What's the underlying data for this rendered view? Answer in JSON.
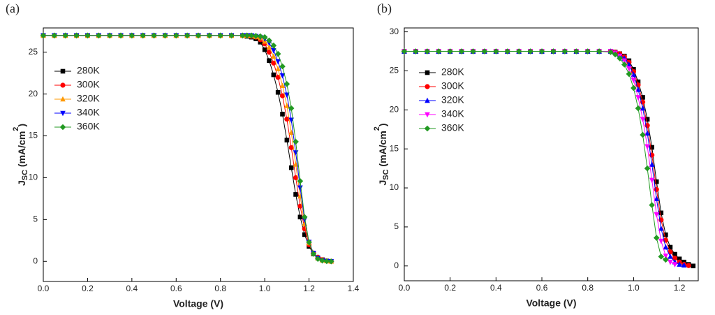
{
  "chart_data": [
    {
      "type": "line",
      "panel_label": "(a)",
      "xlabel": "Voltage (V)",
      "ylabel": [
        "J",
        "SC",
        " (mA/cm",
        "2",
        ")"
      ],
      "xlim": [
        0,
        1.4
      ],
      "ylim": [
        -2.4,
        27.9
      ],
      "xticks": [
        {
          "value": 0,
          "label": "0.0"
        },
        0.2,
        0.4,
        0.6,
        0.8,
        {
          "value": 1,
          "label": "1.0"
        },
        1.2,
        1.4
      ],
      "yticks": [
        0,
        5,
        10,
        15,
        20,
        25
      ],
      "x": [
        0,
        0.05,
        0.1,
        0.15,
        0.2,
        0.25,
        0.3,
        0.35,
        0.4,
        0.45,
        0.5,
        0.55,
        0.6,
        0.65,
        0.7,
        0.75,
        0.8,
        0.85,
        0.9,
        0.92,
        0.94,
        0.96,
        0.98,
        1.0,
        1.02,
        1.04,
        1.06,
        1.08,
        1.1,
        1.12,
        1.14,
        1.16,
        1.18,
        1.2,
        1.22,
        1.24,
        1.26,
        1.28,
        1.3
      ],
      "series": [
        {
          "name": "280K",
          "color": "#000000",
          "marker": "square",
          "values": [
            27,
            27,
            27,
            27,
            27,
            27,
            27,
            27,
            27,
            27,
            27,
            27,
            27,
            27,
            27,
            27,
            27,
            27,
            27,
            26.9,
            26.8,
            26.6,
            26.2,
            25.3,
            24.0,
            22.3,
            20.2,
            17.6,
            14.5,
            11.2,
            8.0,
            5.3,
            3.2,
            1.8,
            0.9,
            0.4,
            0.2,
            0.05,
            0
          ]
        },
        {
          "name": "300K",
          "color": "#ff0000",
          "marker": "circle",
          "values": [
            27,
            27,
            27,
            27,
            27,
            27,
            27,
            27,
            27,
            27,
            27,
            27,
            27,
            27,
            27,
            27,
            27,
            27,
            27,
            27,
            26.9,
            26.8,
            26.5,
            26.0,
            25.0,
            23.7,
            22.0,
            19.8,
            17.0,
            13.6,
            10.0,
            6.6,
            3.9,
            2.0,
            1.0,
            0.5,
            0.2,
            0.05,
            0
          ]
        },
        {
          "name": "320K",
          "color": "#ff9900",
          "marker": "triangle-up",
          "values": [
            27,
            27,
            27,
            27,
            27,
            27,
            27,
            27,
            27,
            27,
            27,
            27,
            27,
            27,
            27,
            27,
            27,
            27,
            27,
            27,
            26.95,
            26.85,
            26.7,
            26.3,
            25.6,
            24.5,
            23.0,
            21.0,
            18.6,
            15.4,
            11.6,
            7.8,
            4.5,
            2.2,
            1.0,
            0.4,
            0.15,
            0.05,
            0
          ]
        },
        {
          "name": "340K",
          "color": "#0000ff",
          "marker": "triangle-down",
          "values": [
            27,
            27,
            27,
            27,
            27,
            27,
            27,
            27,
            27,
            27,
            27,
            27,
            27,
            27,
            27,
            27,
            27,
            27,
            27,
            27,
            27,
            26.9,
            26.8,
            26.6,
            26.1,
            25.2,
            23.9,
            22.2,
            19.9,
            16.9,
            13.0,
            8.8,
            5.0,
            2.3,
            1.0,
            0.4,
            0.1,
            0.02,
            0
          ]
        },
        {
          "name": "360K",
          "color": "#229922",
          "marker": "diamond",
          "values": [
            27,
            27,
            27,
            27,
            27,
            27,
            27,
            27,
            27,
            27,
            27,
            27,
            27,
            27,
            27,
            27,
            27,
            27,
            27,
            27,
            27,
            26.95,
            26.9,
            26.8,
            26.4,
            25.8,
            24.8,
            23.3,
            21.2,
            18.3,
            14.3,
            9.6,
            5.3,
            2.3,
            0.9,
            0.3,
            0.1,
            0.02,
            0
          ]
        }
      ]
    },
    {
      "type": "line",
      "panel_label": "(b)",
      "xlabel": "Voltage (V)",
      "ylabel": [
        "J",
        "SC",
        " (mA/cm",
        "2",
        ")"
      ],
      "xlim": [
        0,
        1.282
      ],
      "ylim": [
        -1.9,
        30.5
      ],
      "xticks": [
        {
          "value": 0,
          "label": "0.0"
        },
        0.2,
        0.4,
        0.6,
        0.8,
        {
          "value": 1,
          "label": "1.0"
        },
        1.2
      ],
      "yticks": [
        0,
        5,
        10,
        15,
        20,
        25,
        30
      ],
      "x": [
        0,
        0.05,
        0.1,
        0.15,
        0.2,
        0.25,
        0.3,
        0.35,
        0.4,
        0.45,
        0.5,
        0.55,
        0.6,
        0.65,
        0.7,
        0.75,
        0.8,
        0.85,
        0.9,
        0.92,
        0.94,
        0.96,
        0.98,
        1.0,
        1.02,
        1.04,
        1.06,
        1.08,
        1.1,
        1.12,
        1.14,
        1.16,
        1.18,
        1.2,
        1.22,
        1.24,
        1.26
      ],
      "series": [
        {
          "name": "280K",
          "color": "#000000",
          "marker": "square",
          "values": [
            27.5,
            27.5,
            27.5,
            27.5,
            27.5,
            27.5,
            27.5,
            27.5,
            27.5,
            27.5,
            27.5,
            27.5,
            27.5,
            27.5,
            27.5,
            27.5,
            27.5,
            27.5,
            27.5,
            27.4,
            27.2,
            26.9,
            26.3,
            25.2,
            23.6,
            21.6,
            18.8,
            15.2,
            10.8,
            6.8,
            4.0,
            2.4,
            1.5,
            0.9,
            0.5,
            0.2,
            0
          ]
        },
        {
          "name": "300K",
          "color": "#ff0000",
          "marker": "circle",
          "values": [
            27.5,
            27.5,
            27.5,
            27.5,
            27.5,
            27.5,
            27.5,
            27.5,
            27.5,
            27.5,
            27.5,
            27.5,
            27.5,
            27.5,
            27.5,
            27.5,
            27.5,
            27.5,
            27.5,
            27.4,
            27.2,
            26.8,
            26.1,
            24.9,
            23.2,
            21.0,
            18.0,
            14.2,
            9.8,
            5.9,
            3.3,
            1.8,
            1.0,
            0.5,
            0.2,
            0.05,
            null
          ]
        },
        {
          "name": "320K",
          "color": "#0000ff",
          "marker": "triangle-up",
          "values": [
            27.5,
            27.5,
            27.5,
            27.5,
            27.5,
            27.5,
            27.5,
            27.5,
            27.5,
            27.5,
            27.5,
            27.5,
            27.5,
            27.5,
            27.5,
            27.5,
            27.5,
            27.5,
            27.5,
            27.3,
            27.0,
            26.6,
            25.8,
            24.5,
            22.6,
            20.2,
            17.0,
            13.0,
            8.6,
            4.8,
            2.4,
            1.2,
            0.5,
            0.2,
            0.1,
            null,
            null
          ]
        },
        {
          "name": "340K",
          "color": "#ff00ff",
          "marker": "triangle-down",
          "values": [
            27.5,
            27.5,
            27.5,
            27.5,
            27.5,
            27.5,
            27.5,
            27.5,
            27.5,
            27.5,
            27.5,
            27.5,
            27.5,
            27.5,
            27.5,
            27.5,
            27.5,
            27.5,
            27.5,
            27.3,
            26.9,
            26.3,
            25.3,
            23.8,
            21.6,
            18.8,
            15.3,
            11.0,
            6.6,
            3.2,
            1.3,
            0.5,
            0.2,
            null,
            null,
            null,
            null
          ]
        },
        {
          "name": "360K",
          "color": "#229922",
          "marker": "diamond",
          "values": [
            27.5,
            27.5,
            27.5,
            27.5,
            27.5,
            27.5,
            27.5,
            27.5,
            27.5,
            27.5,
            27.5,
            27.5,
            27.5,
            27.5,
            27.5,
            27.5,
            27.5,
            27.5,
            27.4,
            27.1,
            26.6,
            25.8,
            24.6,
            22.8,
            20.2,
            16.8,
            12.5,
            7.8,
            3.6,
            1.2,
            0.8,
            null,
            null,
            null,
            null,
            null,
            null
          ]
        }
      ]
    }
  ]
}
